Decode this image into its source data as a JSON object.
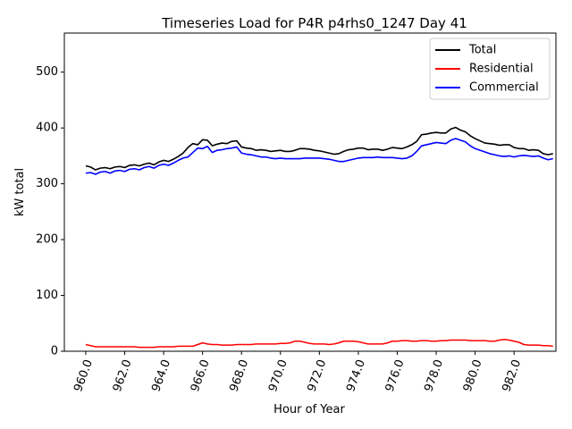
{
  "chart_data": {
    "type": "line",
    "title": "Timeseries Load for P4R p4rhs0_1247  Day 41",
    "xlabel": "Hour of Year",
    "ylabel": "kW total",
    "xlim": [
      958.9,
      984.15
    ],
    "ylim": [
      0,
      570
    ],
    "xticks": [
      960,
      962,
      964,
      966,
      968,
      970,
      972,
      974,
      976,
      978,
      980,
      982
    ],
    "xtick_labels": [
      "960.0",
      "962.0",
      "964.0",
      "966.0",
      "968.0",
      "970.0",
      "972.0",
      "974.0",
      "976.0",
      "978.0",
      "980.0",
      "982.0"
    ],
    "yticks": [
      0,
      100,
      200,
      300,
      400,
      500
    ],
    "ytick_labels": [
      "0",
      "100",
      "200",
      "300",
      "400",
      "500"
    ],
    "grid": false,
    "legend_position": "top-right",
    "x_start": 960.0,
    "x_step": 0.25,
    "series": [
      {
        "name": "Total",
        "color": "#000000",
        "values": [
          332,
          330,
          325,
          328,
          329,
          327,
          330,
          331,
          329,
          333,
          334,
          332,
          335,
          337,
          334,
          339,
          342,
          340,
          344,
          349,
          355,
          365,
          372,
          370,
          379,
          378,
          368,
          371,
          373,
          372,
          376,
          377,
          366,
          364,
          363,
          360,
          361,
          360,
          358,
          359,
          360,
          358,
          358,
          360,
          363,
          363,
          362,
          360,
          359,
          357,
          355,
          353,
          354,
          358,
          361,
          362,
          364,
          364,
          361,
          362,
          362,
          360,
          362,
          365,
          364,
          363,
          366,
          370,
          376,
          388,
          389,
          391,
          392,
          391,
          391,
          398,
          401,
          396,
          393,
          386,
          381,
          377,
          373,
          372,
          371,
          369,
          370,
          370,
          365,
          363,
          363,
          360,
          361,
          360,
          354,
          352,
          354
        ]
      },
      {
        "name": "Residential",
        "color": "#ff0000",
        "values": [
          12,
          10,
          8,
          8,
          8,
          8,
          8,
          8,
          8,
          8,
          8,
          7,
          7,
          7,
          7,
          8,
          8,
          8,
          8,
          9,
          9,
          9,
          9,
          12,
          15,
          13,
          12,
          12,
          11,
          11,
          11,
          12,
          12,
          12,
          12,
          13,
          13,
          13,
          13,
          13,
          14,
          14,
          15,
          18,
          18,
          16,
          14,
          13,
          13,
          13,
          12,
          13,
          15,
          18,
          18,
          18,
          17,
          15,
          13,
          13,
          13,
          13,
          15,
          18,
          18,
          19,
          19,
          18,
          18,
          19,
          19,
          18,
          18,
          19,
          19,
          20,
          20,
          20,
          20,
          19,
          19,
          19,
          19,
          18,
          18,
          20,
          21,
          20,
          18,
          16,
          12,
          11,
          11,
          11,
          10,
          10,
          9
        ]
      },
      {
        "name": "Commercial",
        "color": "#0000ff",
        "values": [
          319,
          320,
          317,
          321,
          322,
          319,
          323,
          324,
          322,
          326,
          327,
          325,
          329,
          331,
          328,
          333,
          335,
          333,
          337,
          342,
          346,
          348,
          356,
          364,
          363,
          367,
          356,
          360,
          361,
          363,
          364,
          366,
          355,
          353,
          352,
          350,
          348,
          348,
          346,
          345,
          346,
          345,
          345,
          345,
          345,
          346,
          346,
          346,
          346,
          345,
          344,
          342,
          340,
          340,
          342,
          344,
          346,
          347,
          347,
          347,
          348,
          347,
          347,
          347,
          346,
          345,
          346,
          350,
          358,
          368,
          370,
          372,
          374,
          373,
          372,
          378,
          381,
          378,
          375,
          368,
          363,
          360,
          357,
          354,
          352,
          350,
          349,
          350,
          348,
          350,
          351,
          350,
          349,
          350,
          346,
          343,
          345
        ]
      }
    ]
  }
}
